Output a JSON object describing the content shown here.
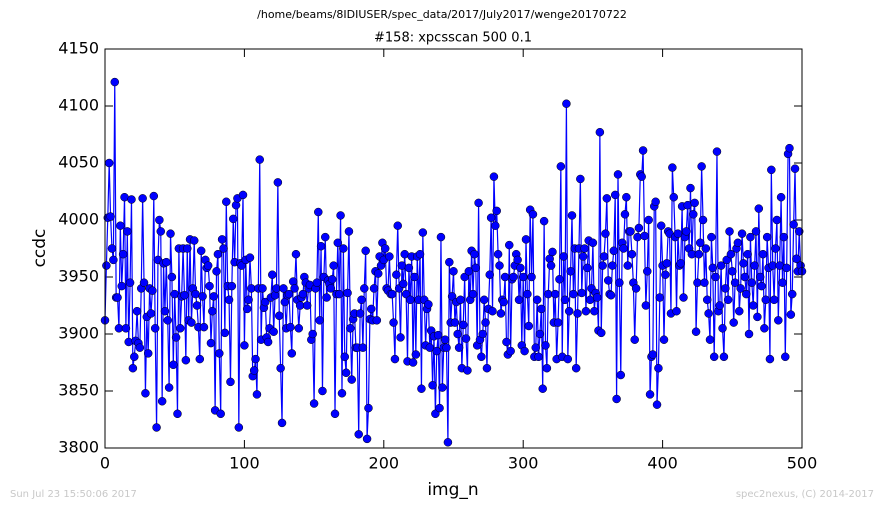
{
  "chart_data": {
    "type": "line",
    "title": "/home/beams/8IDIUSER/spec_data/2017/July2017/wenge20170722",
    "subtitle": "#158: xpcsscan 500 0.1",
    "xlabel": "img_n",
    "ylabel": "ccdc",
    "timestamp": "Sun Jul 23 15:50:06 2017",
    "credit": "spec2nexus, (C) 2014-2017",
    "xlim": [
      0,
      500
    ],
    "xticks": [
      0,
      100,
      200,
      300,
      400,
      500
    ],
    "ylim": [
      3800,
      4150
    ],
    "yticks": [
      3800,
      3850,
      3900,
      3950,
      4000,
      4050,
      4100,
      4150
    ],
    "x": [
      0,
      1,
      2,
      3,
      4,
      5,
      6,
      7,
      8,
      9,
      10,
      11,
      12,
      13,
      14,
      15,
      16,
      17,
      18,
      19,
      20,
      21,
      22,
      23,
      24,
      25,
      26,
      27,
      28,
      29,
      30,
      31,
      32,
      33,
      34,
      35,
      36,
      37,
      38,
      39,
      40,
      41,
      42,
      43,
      44,
      45,
      46,
      47,
      48,
      49,
      50,
      51,
      52,
      53,
      54,
      55,
      56,
      57,
      58,
      59,
      60,
      61,
      62,
      63,
      64,
      65,
      66,
      67,
      68,
      69,
      70,
      71,
      72,
      73,
      74,
      75,
      76,
      77,
      78,
      79,
      80,
      81,
      82,
      83,
      84,
      85,
      86,
      87,
      88,
      89,
      90,
      91,
      92,
      93,
      94,
      95,
      96,
      97,
      98,
      99,
      100,
      101,
      102,
      103,
      104,
      105,
      106,
      107,
      108,
      109,
      110,
      111,
      112,
      113,
      114,
      115,
      116,
      117,
      118,
      119,
      120,
      121,
      122,
      123,
      124,
      125,
      126,
      127,
      128,
      129,
      130,
      131,
      132,
      133,
      134,
      135,
      136,
      137,
      138,
      139,
      140,
      141,
      142,
      143,
      144,
      145,
      146,
      147,
      148,
      149,
      150,
      151,
      152,
      153,
      154,
      155,
      156,
      157,
      158,
      159,
      160,
      161,
      162,
      163,
      164,
      165,
      166,
      167,
      168,
      169,
      170,
      171,
      172,
      173,
      174,
      175,
      176,
      177,
      178,
      179,
      180,
      181,
      182,
      183,
      184,
      185,
      186,
      187,
      188,
      189,
      190,
      191,
      192,
      193,
      194,
      195,
      196,
      197,
      198,
      199,
      200,
      201,
      202,
      203,
      204,
      205,
      206,
      207,
      208,
      209,
      210,
      211,
      212,
      213,
      214,
      215,
      216,
      217,
      218,
      219,
      220,
      221,
      222,
      223,
      224,
      225,
      226,
      227,
      228,
      229,
      230,
      231,
      232,
      233,
      234,
      235,
      236,
      237,
      238,
      239,
      240,
      241,
      242,
      243,
      244,
      245,
      246,
      247,
      248,
      249,
      250,
      251,
      252,
      253,
      254,
      255,
      256,
      257,
      258,
      259,
      260,
      261,
      262,
      263,
      264,
      265,
      266,
      267,
      268,
      269,
      270,
      271,
      272,
      273,
      274,
      275,
      276,
      277,
      278,
      279,
      280,
      281,
      282,
      283,
      284,
      285,
      286,
      287,
      288,
      289,
      290,
      291,
      292,
      293,
      294,
      295,
      296,
      297,
      298,
      299,
      300,
      301,
      302,
      303,
      304,
      305,
      306,
      307,
      308,
      309,
      310,
      311,
      312,
      313,
      314,
      315,
      316,
      317,
      318,
      319,
      320,
      321,
      322,
      323,
      324,
      325,
      326,
      327,
      328,
      329,
      330,
      331,
      332,
      333,
      334,
      335,
      336,
      337,
      338,
      339,
      340,
      341,
      342,
      343,
      344,
      345,
      346,
      347,
      348,
      349,
      350,
      351,
      352,
      353,
      354,
      355,
      356,
      357,
      358,
      359,
      360,
      361,
      362,
      363,
      364,
      365,
      366,
      367,
      368,
      369,
      370,
      371,
      372,
      373,
      374,
      375,
      376,
      377,
      378,
      379,
      380,
      381,
      382,
      383,
      384,
      385,
      386,
      387,
      388,
      389,
      390,
      391,
      392,
      393,
      394,
      395,
      396,
      397,
      398,
      399,
      400,
      401,
      402,
      403,
      404,
      405,
      406,
      407,
      408,
      409,
      410,
      411,
      412,
      413,
      414,
      415,
      416,
      417,
      418,
      419,
      420,
      421,
      422,
      423,
      424,
      425,
      426,
      427,
      428,
      429,
      430,
      431,
      432,
      433,
      434,
      435,
      436,
      437,
      438,
      439,
      440,
      441,
      442,
      443,
      444,
      445,
      446,
      447,
      448,
      449,
      450,
      451,
      452,
      453,
      454,
      455,
      456,
      457,
      458,
      459,
      460,
      461,
      462,
      463,
      464,
      465,
      466,
      467,
      468,
      469,
      470,
      471,
      472,
      473,
      474,
      475,
      476,
      477,
      478,
      479,
      480,
      481,
      482,
      483,
      484,
      485,
      486,
      487,
      488,
      489,
      490,
      491,
      492,
      493,
      494,
      495,
      496,
      497,
      498,
      499,
      500
    ],
    "series": [
      {
        "color": "#0000ff",
        "values": [
          3912,
          3960,
          4002,
          4050,
          4003,
          3975,
          3965,
          4121,
          3932,
          3932,
          3905,
          3995,
          3942,
          3970,
          4020,
          3905,
          3990,
          3893,
          3945,
          4018,
          3870,
          3880,
          3894,
          3920,
          3892,
          3888,
          3940,
          4019,
          3945,
          3848,
          3915,
          3883,
          3940,
          3918,
          3938,
          4021,
          3905,
          3818,
          3965,
          4000,
          3990,
          3841,
          3962,
          3920,
          3963,
          3912,
          3853,
          3988,
          3950,
          3873,
          3935,
          3897,
          3830,
          3975,
          3905,
          3933,
          3975,
          3934,
          3877,
          3975,
          3912,
          3983,
          3910,
          3940,
          3982,
          3935,
          3925,
          3906,
          3878,
          3973,
          3933,
          3906,
          3965,
          3958,
          3960,
          3942,
          3892,
          3920,
          3933,
          3833,
          3955,
          3970,
          3883,
          3830,
          3983,
          3975,
          3901,
          4016,
          3942,
          3930,
          3858,
          3942,
          4001,
          3963,
          4013,
          4019,
          3818,
          3962,
          3960,
          4022,
          3890,
          3965,
          3922,
          3930,
          3967,
          3940,
          3863,
          3868,
          3878,
          3847,
          3940,
          4053,
          3895,
          3940,
          3923,
          3928,
          3897,
          3893,
          3905,
          3932,
          3952,
          3902,
          3934,
          3940,
          4033,
          3916,
          3870,
          3822,
          3940,
          3928,
          3905,
          3934,
          3935,
          3906,
          3883,
          3946,
          3940,
          3970,
          3930,
          3905,
          3925,
          3932,
          3935,
          3950,
          3945,
          3925,
          3940,
          3943,
          3895,
          3900,
          3839,
          3940,
          3945,
          4007,
          3912,
          3977,
          3850,
          3950,
          3985,
          3932,
          3947,
          3944,
          3940,
          3948,
          3960,
          3830,
          3935,
          3980,
          3935,
          4004,
          3848,
          3975,
          3880,
          3866,
          3936,
          3990,
          3905,
          3860,
          3913,
          3918,
          3888,
          3888,
          3812,
          3918,
          3930,
          3888,
          3940,
          3973,
          3808,
          3835,
          3913,
          3922,
          3912,
          3940,
          3955,
          3912,
          3953,
          3968,
          3960,
          3980,
          3965,
          3975,
          3940,
          3938,
          3968,
          3935,
          3935,
          3910,
          3878,
          3952,
          3995,
          3940,
          3897,
          3960,
          3944,
          3970,
          3935,
          3876,
          3958,
          3930,
          3968,
          3875,
          3950,
          3882,
          3968,
          3930,
          3970,
          3852,
          3989,
          3930,
          3890,
          3922,
          3926,
          3888,
          3903,
          3855,
          3898,
          3830,
          3885,
          3899,
          3835,
          3985,
          3853,
          3888,
          3895,
          3888,
          3805,
          3963,
          3910,
          3933,
          3955,
          3910,
          3928,
          3900,
          3888,
          3930,
          3870,
          3908,
          3950,
          3896,
          3868,
          3955,
          3930,
          3973,
          3935,
          3970,
          3958,
          3890,
          4015,
          3895,
          3880,
          3900,
          3930,
          3910,
          3870,
          3922,
          3952,
          4002,
          3920,
          4038,
          3995,
          4008,
          3970,
          3960,
          3918,
          3930,
          3928,
          3950,
          3893,
          3882,
          3978,
          3885,
          3948,
          3950,
          3960,
          3970,
          3965,
          3930,
          3958,
          3890,
          3950,
          3885,
          3983,
          3935,
          3907,
          4009,
          3950,
          4005,
          3880,
          3888,
          3930,
          3880,
          3900,
          3922,
          3852,
          3999,
          3890,
          3870,
          3935,
          3966,
          3960,
          3972,
          3910,
          3935,
          3878,
          3910,
          3948,
          4047,
          3880,
          3968,
          3930,
          4102,
          3878,
          3920,
          3955,
          4004,
          3935,
          3975,
          3870,
          3918,
          3975,
          4036,
          3936,
          3968,
          3975,
          3920,
          3958,
          3982,
          3930,
          3940,
          3980,
          3920,
          3936,
          3932,
          3903,
          4077,
          3901,
          3960,
          3968,
          3988,
          4019,
          3947,
          3935,
          3934,
          3960,
          3973,
          4022,
          3843,
          4040,
          3945,
          3864,
          3980,
          3975,
          4005,
          4020,
          3960,
          3990,
          3990,
          3970,
          3945,
          3895,
          3940,
          3985,
          3993,
          4040,
          4038,
          4061,
          3986,
          3925,
          3955,
          4000,
          3847,
          3880,
          3882,
          4012,
          4016,
          3838,
          3870,
          3932,
          3995,
          3960,
          3895,
          3952,
          3962,
          3990,
          3988,
          3918,
          4046,
          4020,
          3985,
          3920,
          3988,
          3960,
          3962,
          4012,
          3932,
          3985,
          3990,
          4013,
          3975,
          4028,
          3970,
          4005,
          4015,
          3902,
          3945,
          3970,
          3980,
          4047,
          4000,
          3945,
          3975,
          3930,
          3918,
          3895,
          3985,
          3958,
          3880,
          3950,
          4060,
          3920,
          3925,
          3960,
          3905,
          3880,
          3940,
          3965,
          3930,
          3990,
          3970,
          3955,
          3910,
          3945,
          3975,
          3980,
          3920,
          3940,
          3988,
          3962,
          3950,
          3935,
          3970,
          3900,
          3985,
          3945,
          3925,
          3960,
          3990,
          3915,
          4010,
          3950,
          3942,
          3970,
          3905,
          3930,
          3985,
          3958,
          3878,
          4044,
          3960,
          3930,
          3975,
          4000,
          3912,
          3960,
          4020,
          3945,
          3985,
          3880,
          3958,
          4058,
          4063,
          3917,
          3935,
          3996,
          4045,
          3966,
          3955,
          3990,
          3960,
          3955
        ]
      }
    ]
  }
}
